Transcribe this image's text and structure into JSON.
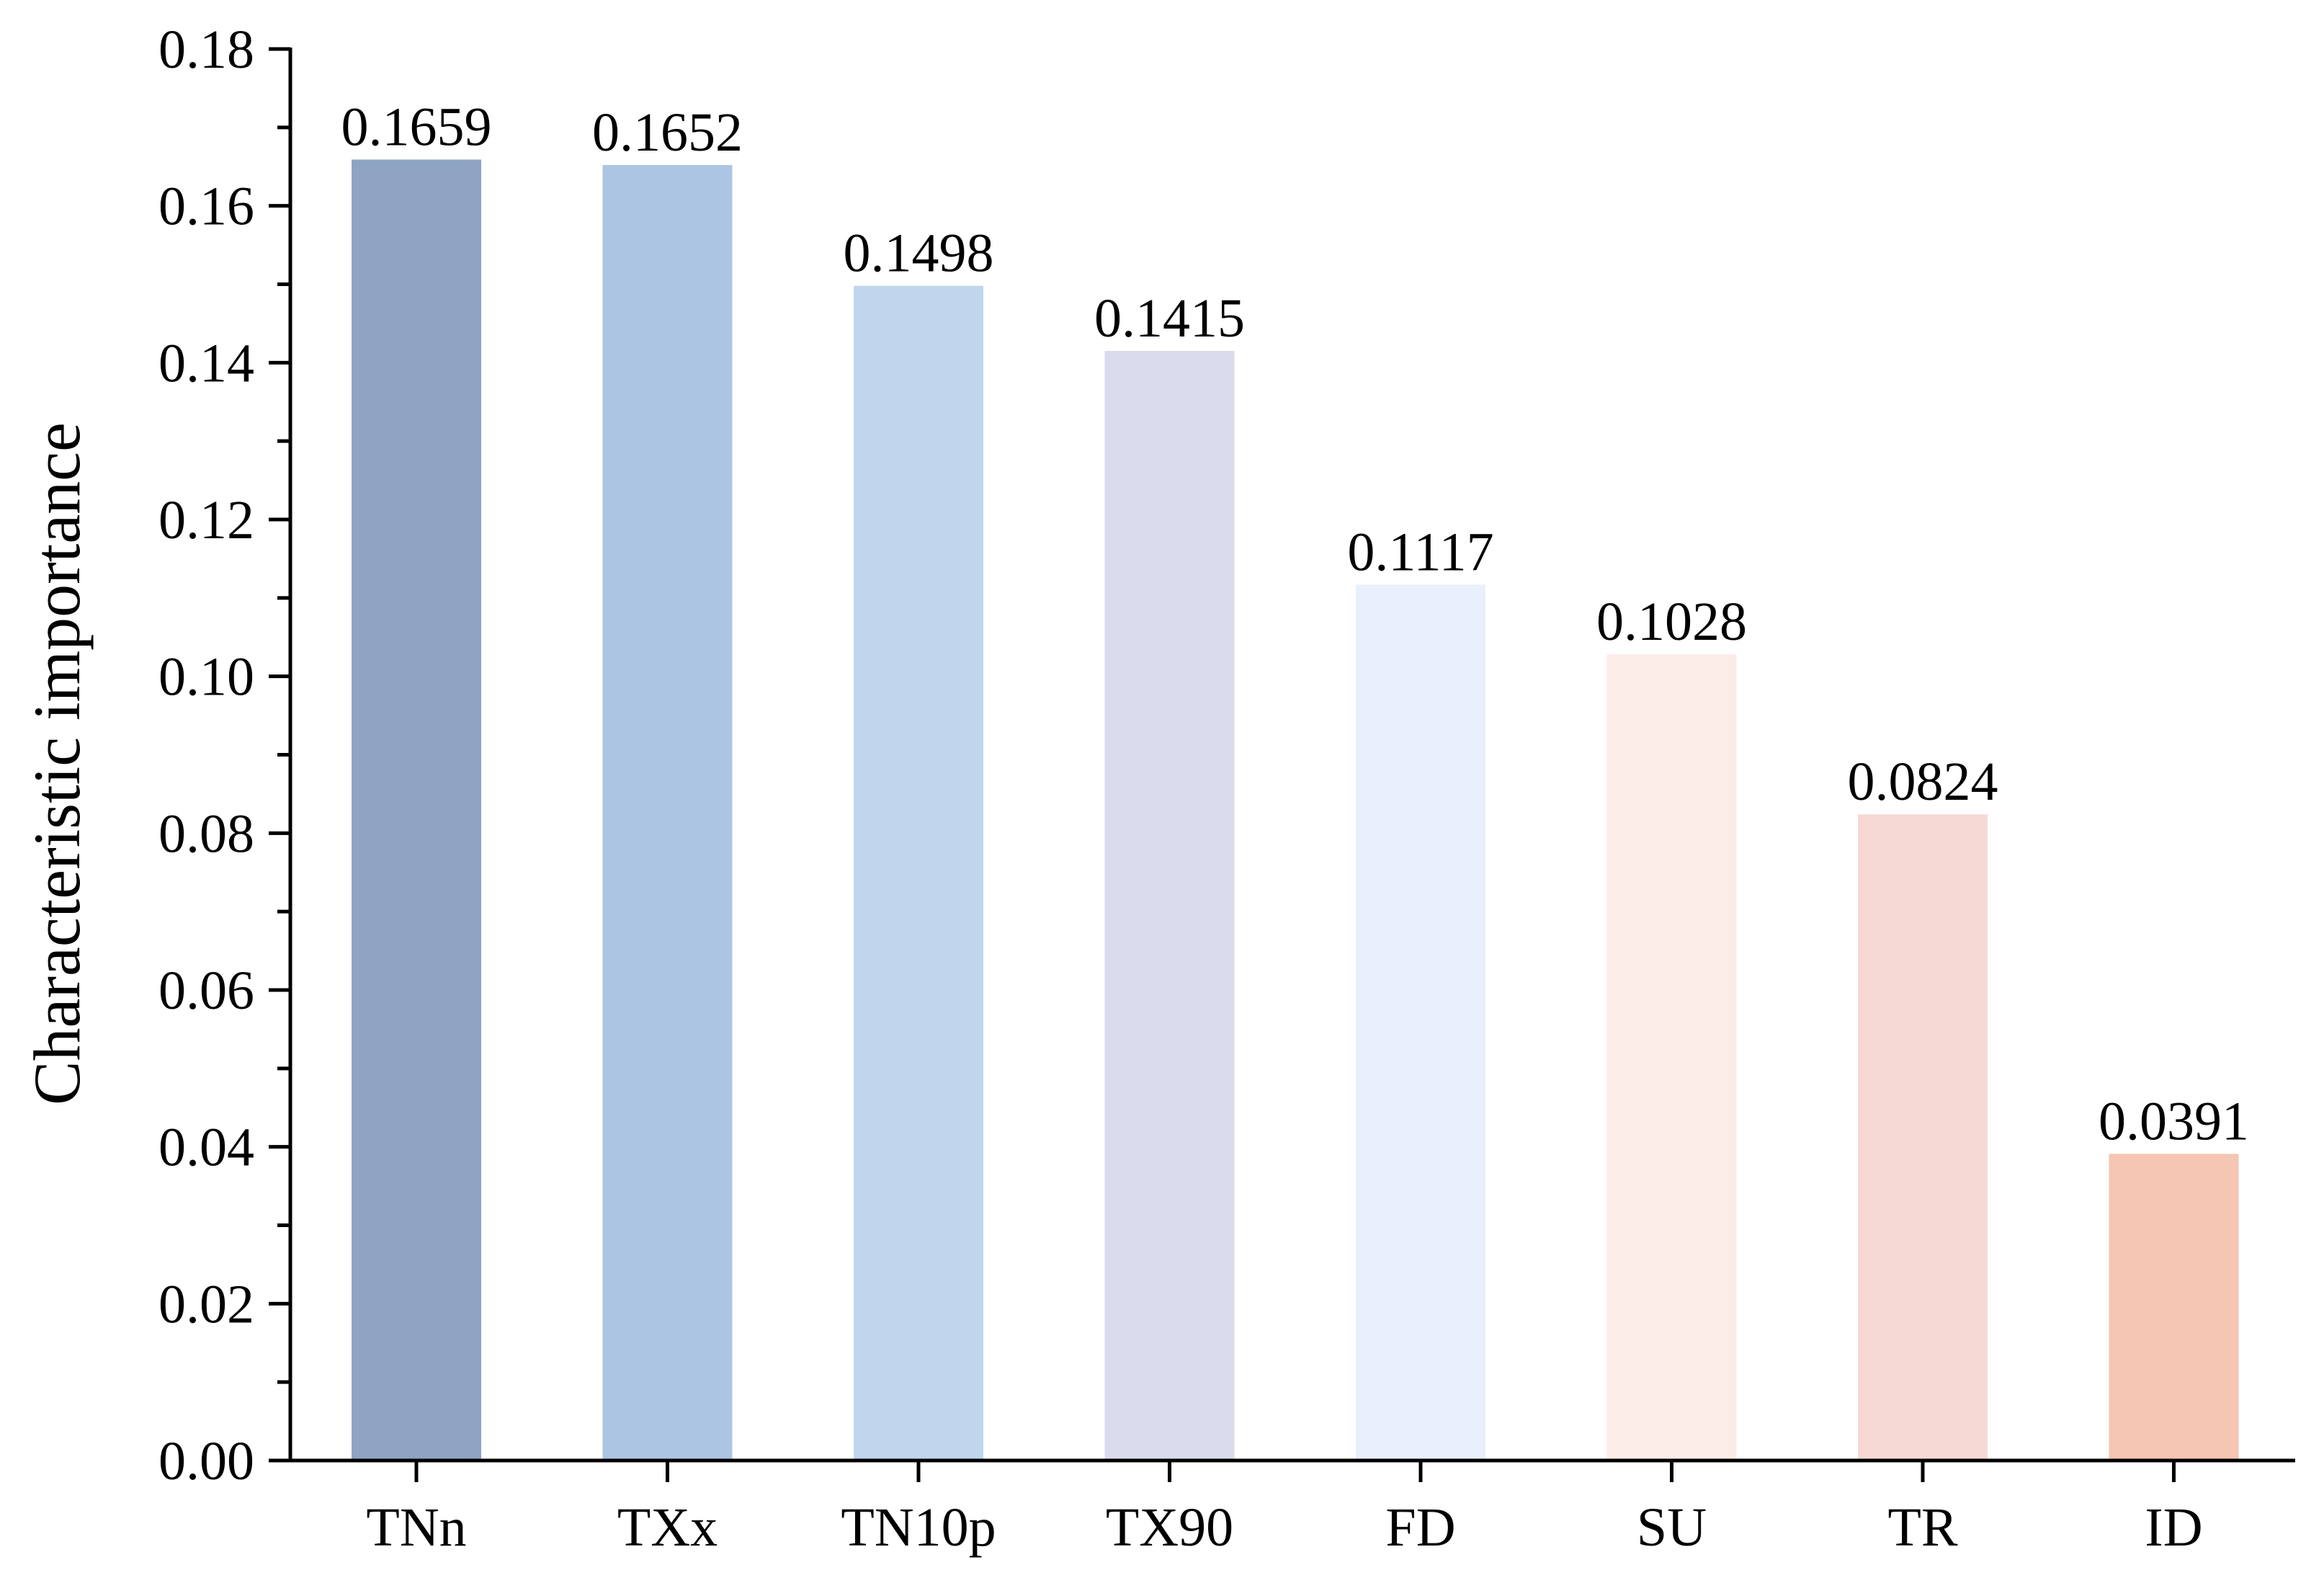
{
  "chart_data": {
    "type": "bar",
    "title": "",
    "xlabel": "",
    "ylabel": "Characteristic importance",
    "categories": [
      "TNn",
      "TXx",
      "TN10p",
      "TX90",
      "FD",
      "SU",
      "TR",
      "ID"
    ],
    "values": [
      0.1659,
      0.1652,
      0.1498,
      0.1415,
      0.1117,
      0.1028,
      0.0824,
      0.0391
    ],
    "value_labels": [
      "0.1659",
      "0.1652",
      "0.1498",
      "0.1415",
      "0.1117",
      "0.1028",
      "0.0824",
      "0.0391"
    ],
    "ylim": [
      0,
      0.18
    ],
    "yticks": [
      0.0,
      0.02,
      0.04,
      0.06,
      0.08,
      0.1,
      0.12,
      0.14,
      0.16,
      0.18
    ],
    "ytick_labels": [
      "0.00",
      "0.02",
      "0.04",
      "0.06",
      "0.08",
      "0.10",
      "0.12",
      "0.14",
      "0.16",
      "0.18"
    ],
    "minor_ticks_between": 1,
    "grid": false,
    "legend": "none",
    "bar_colors": [
      "#8fa4c2",
      "#abc5e3",
      "#bfd6ec",
      "#dadbec",
      "#e9effb",
      "#fbece7",
      "#f6d9d4",
      "#f5c6b1"
    ],
    "axis_color": "#000000"
  }
}
